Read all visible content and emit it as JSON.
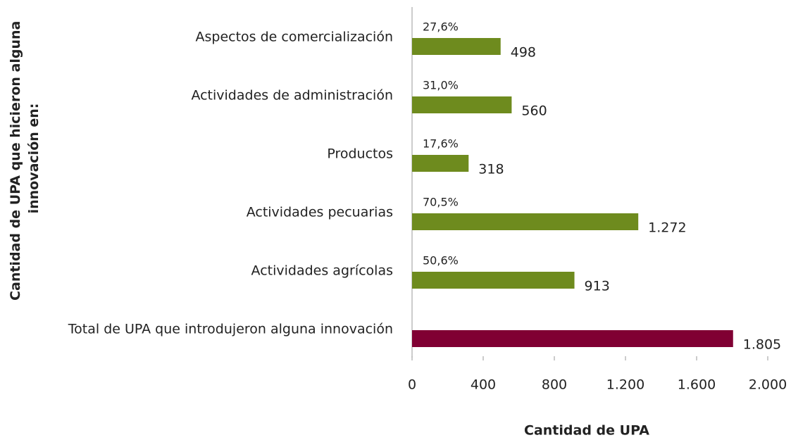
{
  "chart_data": {
    "type": "barh",
    "categories": [
      "Aspectos de comercialización",
      "Actividades de administración",
      "Productos",
      "Actividades pecuarias",
      "Actividades agrícolas",
      "Total de UPA que introdujeron alguna innovación"
    ],
    "values": [
      498,
      560,
      318,
      1272,
      913,
      1805
    ],
    "value_labels": [
      "498",
      "560",
      "318",
      "1.272",
      "913",
      "1.805"
    ],
    "share_values": [
      27.6,
      31.0,
      17.6,
      70.5,
      50.6,
      null
    ],
    "share_labels": [
      "27,6%",
      "31,0%",
      "17,6%",
      "70,5%",
      "50,6%",
      null
    ],
    "colors": [
      "#6e8b1e",
      "#6e8b1e",
      "#6e8b1e",
      "#6e8b1e",
      "#6e8b1e",
      "#800033"
    ],
    "xlim": [
      0,
      2000
    ],
    "xticks": [
      0,
      400,
      800,
      {
        "value": 1200,
        "label": "1.200"
      },
      {
        "value": 1600,
        "label": "1.600"
      },
      {
        "value": 2000,
        "label": "2.000"
      }
    ],
    "xlabel": "Cantidad de UPA",
    "ylabel": [
      "Cantidad de UPA que hicieron alguna",
      "innovación en:"
    ]
  }
}
